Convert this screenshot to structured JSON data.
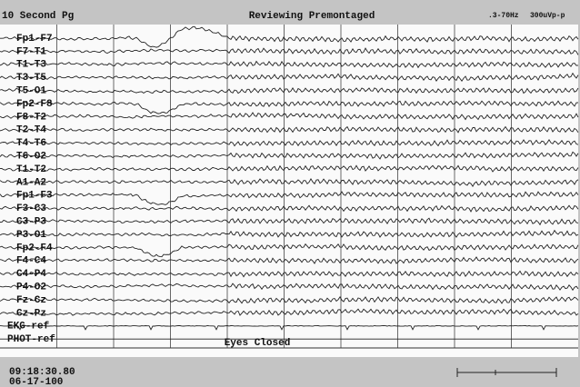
{
  "header": {
    "left": "10 Second Pg",
    "title": "Reviewing Premontaged",
    "filter": ".3-70Hz",
    "sensitivity": "300uVp-p"
  },
  "channels": [
    "Fp1-F7",
    "F7-T1",
    "T1-T3",
    "T3-T5",
    "T5-O1",
    "Fp2-F8",
    "F8-T2",
    "T2-T4",
    "T4-T6",
    "T6-O2",
    "T1-T2",
    "A1-A2",
    "Fp1-F3",
    "F3-C3",
    "C3-P3",
    "P3-O1",
    "Fp2-F4",
    "F4-C4",
    "C4-P4",
    "P4-O2",
    "Fz-Cz",
    "Cz-Pz",
    "EKG-ref",
    "PHOT-ref"
  ],
  "annotation": "Eyes Closed",
  "footer": {
    "time": "09:18:30.80",
    "date": "06-17-100"
  }
}
